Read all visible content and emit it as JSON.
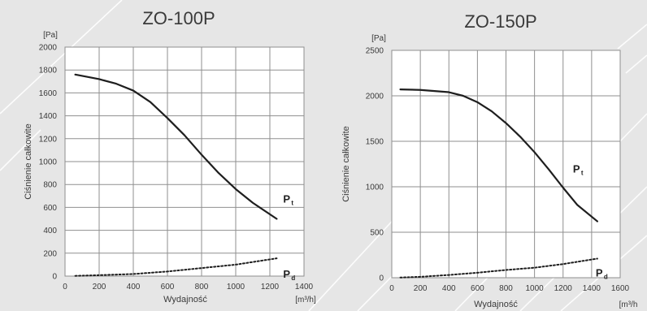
{
  "chart_data": [
    {
      "type": "line",
      "title": "ZO-100P",
      "ylabel": "Ciśnienie całkowite",
      "yunit": "[Pa]",
      "xlabel": "Wydajność",
      "xunit": "[m³/h]",
      "xlim": [
        0,
        1400
      ],
      "ylim": [
        0,
        2000
      ],
      "x_ticks": [
        "0",
        "200",
        "400",
        "600",
        "800",
        "1000",
        "1200",
        "1400"
      ],
      "y_ticks": [
        "0",
        "200",
        "400",
        "600",
        "800",
        "1000",
        "1200",
        "1400",
        "1600",
        "1800",
        "2000"
      ],
      "grid": true,
      "series": [
        {
          "name": "P",
          "sub": "t",
          "style": "solid",
          "points": [
            [
              60,
              1760
            ],
            [
              200,
              1720
            ],
            [
              300,
              1680
            ],
            [
              400,
              1620
            ],
            [
              500,
              1520
            ],
            [
              600,
              1380
            ],
            [
              700,
              1230
            ],
            [
              800,
              1060
            ],
            [
              900,
              900
            ],
            [
              1000,
              760
            ],
            [
              1100,
              640
            ],
            [
              1240,
              500
            ]
          ]
        },
        {
          "name": "P",
          "sub": "d",
          "style": "dotted",
          "points": [
            [
              60,
              2
            ],
            [
              200,
              8
            ],
            [
              400,
              18
            ],
            [
              600,
              40
            ],
            [
              800,
              70
            ],
            [
              1000,
              100
            ],
            [
              1240,
              155
            ]
          ]
        }
      ]
    },
    {
      "type": "line",
      "title": "ZO-150P",
      "ylabel": "Ciśnienie całkowite",
      "yunit": "[Pa]",
      "xlabel": "Wydajność",
      "xunit": "[m³/h",
      "xlim": [
        0,
        1600
      ],
      "ylim": [
        0,
        2500
      ],
      "x_ticks": [
        "0",
        "200",
        "400",
        "600",
        "800",
        "1000",
        "1200",
        "1400",
        "1600"
      ],
      "y_ticks": [
        "0",
        "500",
        "1000",
        "1500",
        "2000",
        "2500"
      ],
      "grid": true,
      "series": [
        {
          "name": "P",
          "sub": "t",
          "style": "solid",
          "points": [
            [
              60,
              2070
            ],
            [
              200,
              2065
            ],
            [
              400,
              2040
            ],
            [
              500,
              2000
            ],
            [
              600,
              1930
            ],
            [
              700,
              1830
            ],
            [
              800,
              1700
            ],
            [
              900,
              1550
            ],
            [
              1000,
              1380
            ],
            [
              1100,
              1190
            ],
            [
              1200,
              990
            ],
            [
              1300,
              800
            ],
            [
              1440,
              620
            ]
          ]
        },
        {
          "name": "P",
          "sub": "d",
          "style": "dotted",
          "points": [
            [
              60,
              2
            ],
            [
              200,
              10
            ],
            [
              400,
              30
            ],
            [
              600,
              55
            ],
            [
              800,
              85
            ],
            [
              1000,
              110
            ],
            [
              1200,
              150
            ],
            [
              1440,
              210
            ]
          ]
        }
      ]
    }
  ]
}
